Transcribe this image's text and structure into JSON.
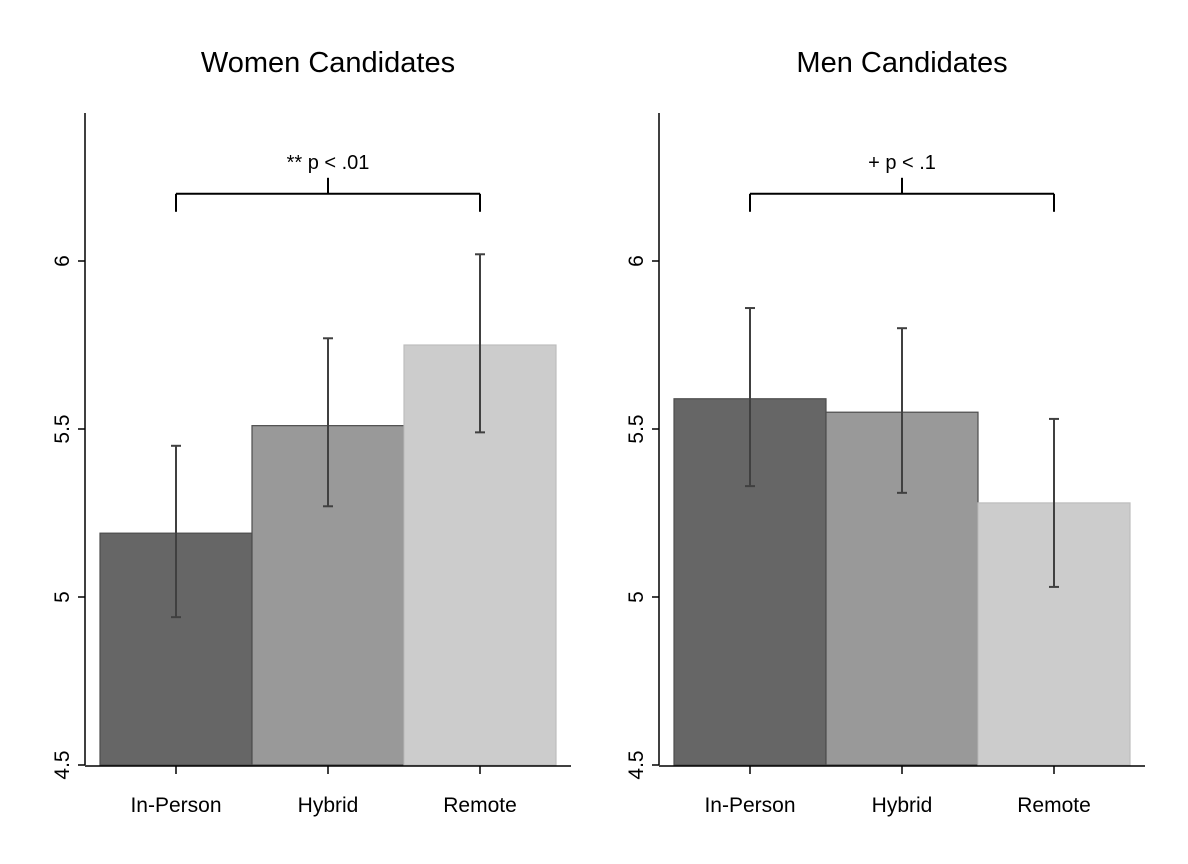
{
  "chart_data": [
    {
      "type": "bar",
      "title": "Women Candidates",
      "categories": [
        "In-Person",
        "Hybrid",
        "Remote"
      ],
      "values": [
        5.19,
        5.51,
        5.75
      ],
      "error_low": [
        4.94,
        5.27,
        5.49
      ],
      "error_high": [
        5.45,
        5.77,
        6.02
      ],
      "ylim": [
        4.5,
        6.45
      ],
      "yticks": [
        4.5,
        5,
        5.5,
        6
      ],
      "ytick_labels": [
        "4.5",
        "5",
        "5.5",
        "6"
      ],
      "xlabel": "",
      "ylabel": "",
      "bar_colors": [
        "#666666",
        "#999999",
        "#cccccc"
      ],
      "significance": {
        "from": "In-Person",
        "to": "Remote",
        "y": 6.2,
        "label": "** p < .01"
      }
    },
    {
      "type": "bar",
      "title": "Men Candidates",
      "categories": [
        "In-Person",
        "Hybrid",
        "Remote"
      ],
      "values": [
        5.59,
        5.55,
        5.28
      ],
      "error_low": [
        5.33,
        5.31,
        5.03
      ],
      "error_high": [
        5.86,
        5.8,
        5.53
      ],
      "ylim": [
        4.5,
        6.45
      ],
      "yticks": [
        4.5,
        5,
        5.5,
        6
      ],
      "ytick_labels": [
        "4.5",
        "5",
        "5.5",
        "6"
      ],
      "xlabel": "",
      "ylabel": "",
      "bar_colors": [
        "#666666",
        "#999999",
        "#cccccc"
      ],
      "significance": {
        "from": "In-Person",
        "to": "Remote",
        "y": 6.2,
        "label": "+ p < .1"
      }
    }
  ]
}
